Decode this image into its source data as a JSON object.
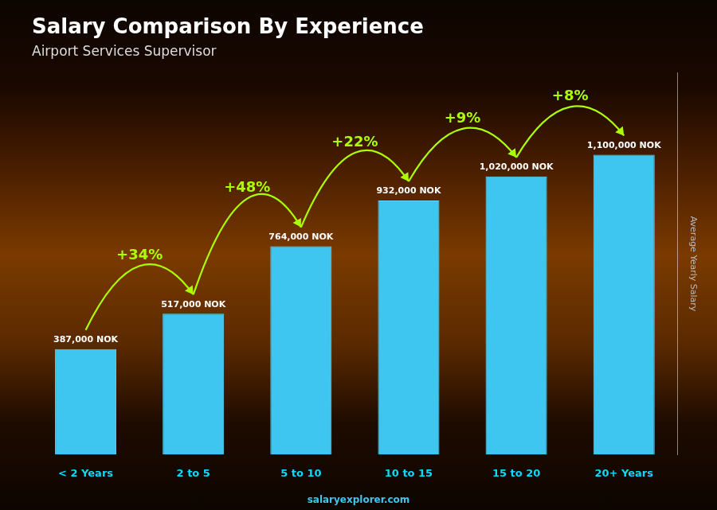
{
  "chart_data": {
    "type": "bar",
    "title": "Salary Comparison By Experience",
    "subtitle": "Airport Services Supervisor",
    "y_label": "Average Yearly Salary",
    "categories": [
      "< 2 Years",
      "2 to 5",
      "5 to 10",
      "10 to 15",
      "15 to 20",
      "20+ Years"
    ],
    "values": [
      387000,
      517000,
      764000,
      932000,
      1020000,
      1100000
    ],
    "value_labels": [
      "387,000 NOK",
      "517,000 NOK",
      "764,000 NOK",
      "932,000 NOK",
      "1,020,000 NOK",
      "1,100,000 NOK"
    ],
    "data_labels": true,
    "color": "#3ec6f0",
    "ylim": [
      0,
      1400000
    ],
    "grid": false,
    "tick_labels": "x",
    "annotations": [
      {
        "text": "+34%",
        "between": [
          "< 2 Years",
          "2 to 5"
        ]
      },
      {
        "text": "+48%",
        "between": [
          "2 to 5",
          "5 to 10"
        ]
      },
      {
        "text": "+22%",
        "between": [
          "5 to 10",
          "10 to 15"
        ]
      },
      {
        "text": "+9%",
        "between": [
          "10 to 15",
          "15 to 20"
        ]
      },
      {
        "text": "+8%",
        "between": [
          "15 to 20",
          "20+ Years"
        ]
      },
      {
        "text": "salaryexplorer.com"
      }
    ]
  }
}
